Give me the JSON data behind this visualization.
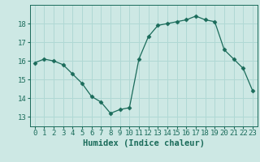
{
  "x": [
    0,
    1,
    2,
    3,
    4,
    5,
    6,
    7,
    8,
    9,
    10,
    11,
    12,
    13,
    14,
    15,
    16,
    17,
    18,
    19,
    20,
    21,
    22,
    23
  ],
  "y": [
    15.9,
    16.1,
    16.0,
    15.8,
    15.3,
    14.8,
    14.1,
    13.8,
    13.2,
    13.4,
    13.5,
    16.1,
    17.3,
    17.9,
    18.0,
    18.1,
    18.2,
    18.4,
    18.2,
    18.1,
    16.6,
    16.1,
    15.6,
    14.4
  ],
  "xlabel": "Humidex (Indice chaleur)",
  "xlim": [
    -0.5,
    23.5
  ],
  "ylim": [
    12.5,
    19.0
  ],
  "yticks": [
    13,
    14,
    15,
    16,
    17,
    18
  ],
  "xticks": [
    0,
    1,
    2,
    3,
    4,
    5,
    6,
    7,
    8,
    9,
    10,
    11,
    12,
    13,
    14,
    15,
    16,
    17,
    18,
    19,
    20,
    21,
    22,
    23
  ],
  "bg_color": "#cde8e4",
  "grid_color": "#b0d8d4",
  "line_color": "#1a6b5a",
  "marker_color": "#1a6b5a",
  "label_color": "#1a6b5a",
  "tick_color": "#1a6b5a",
  "xlabel_fontsize": 7.5,
  "tick_fontsize": 6.5
}
